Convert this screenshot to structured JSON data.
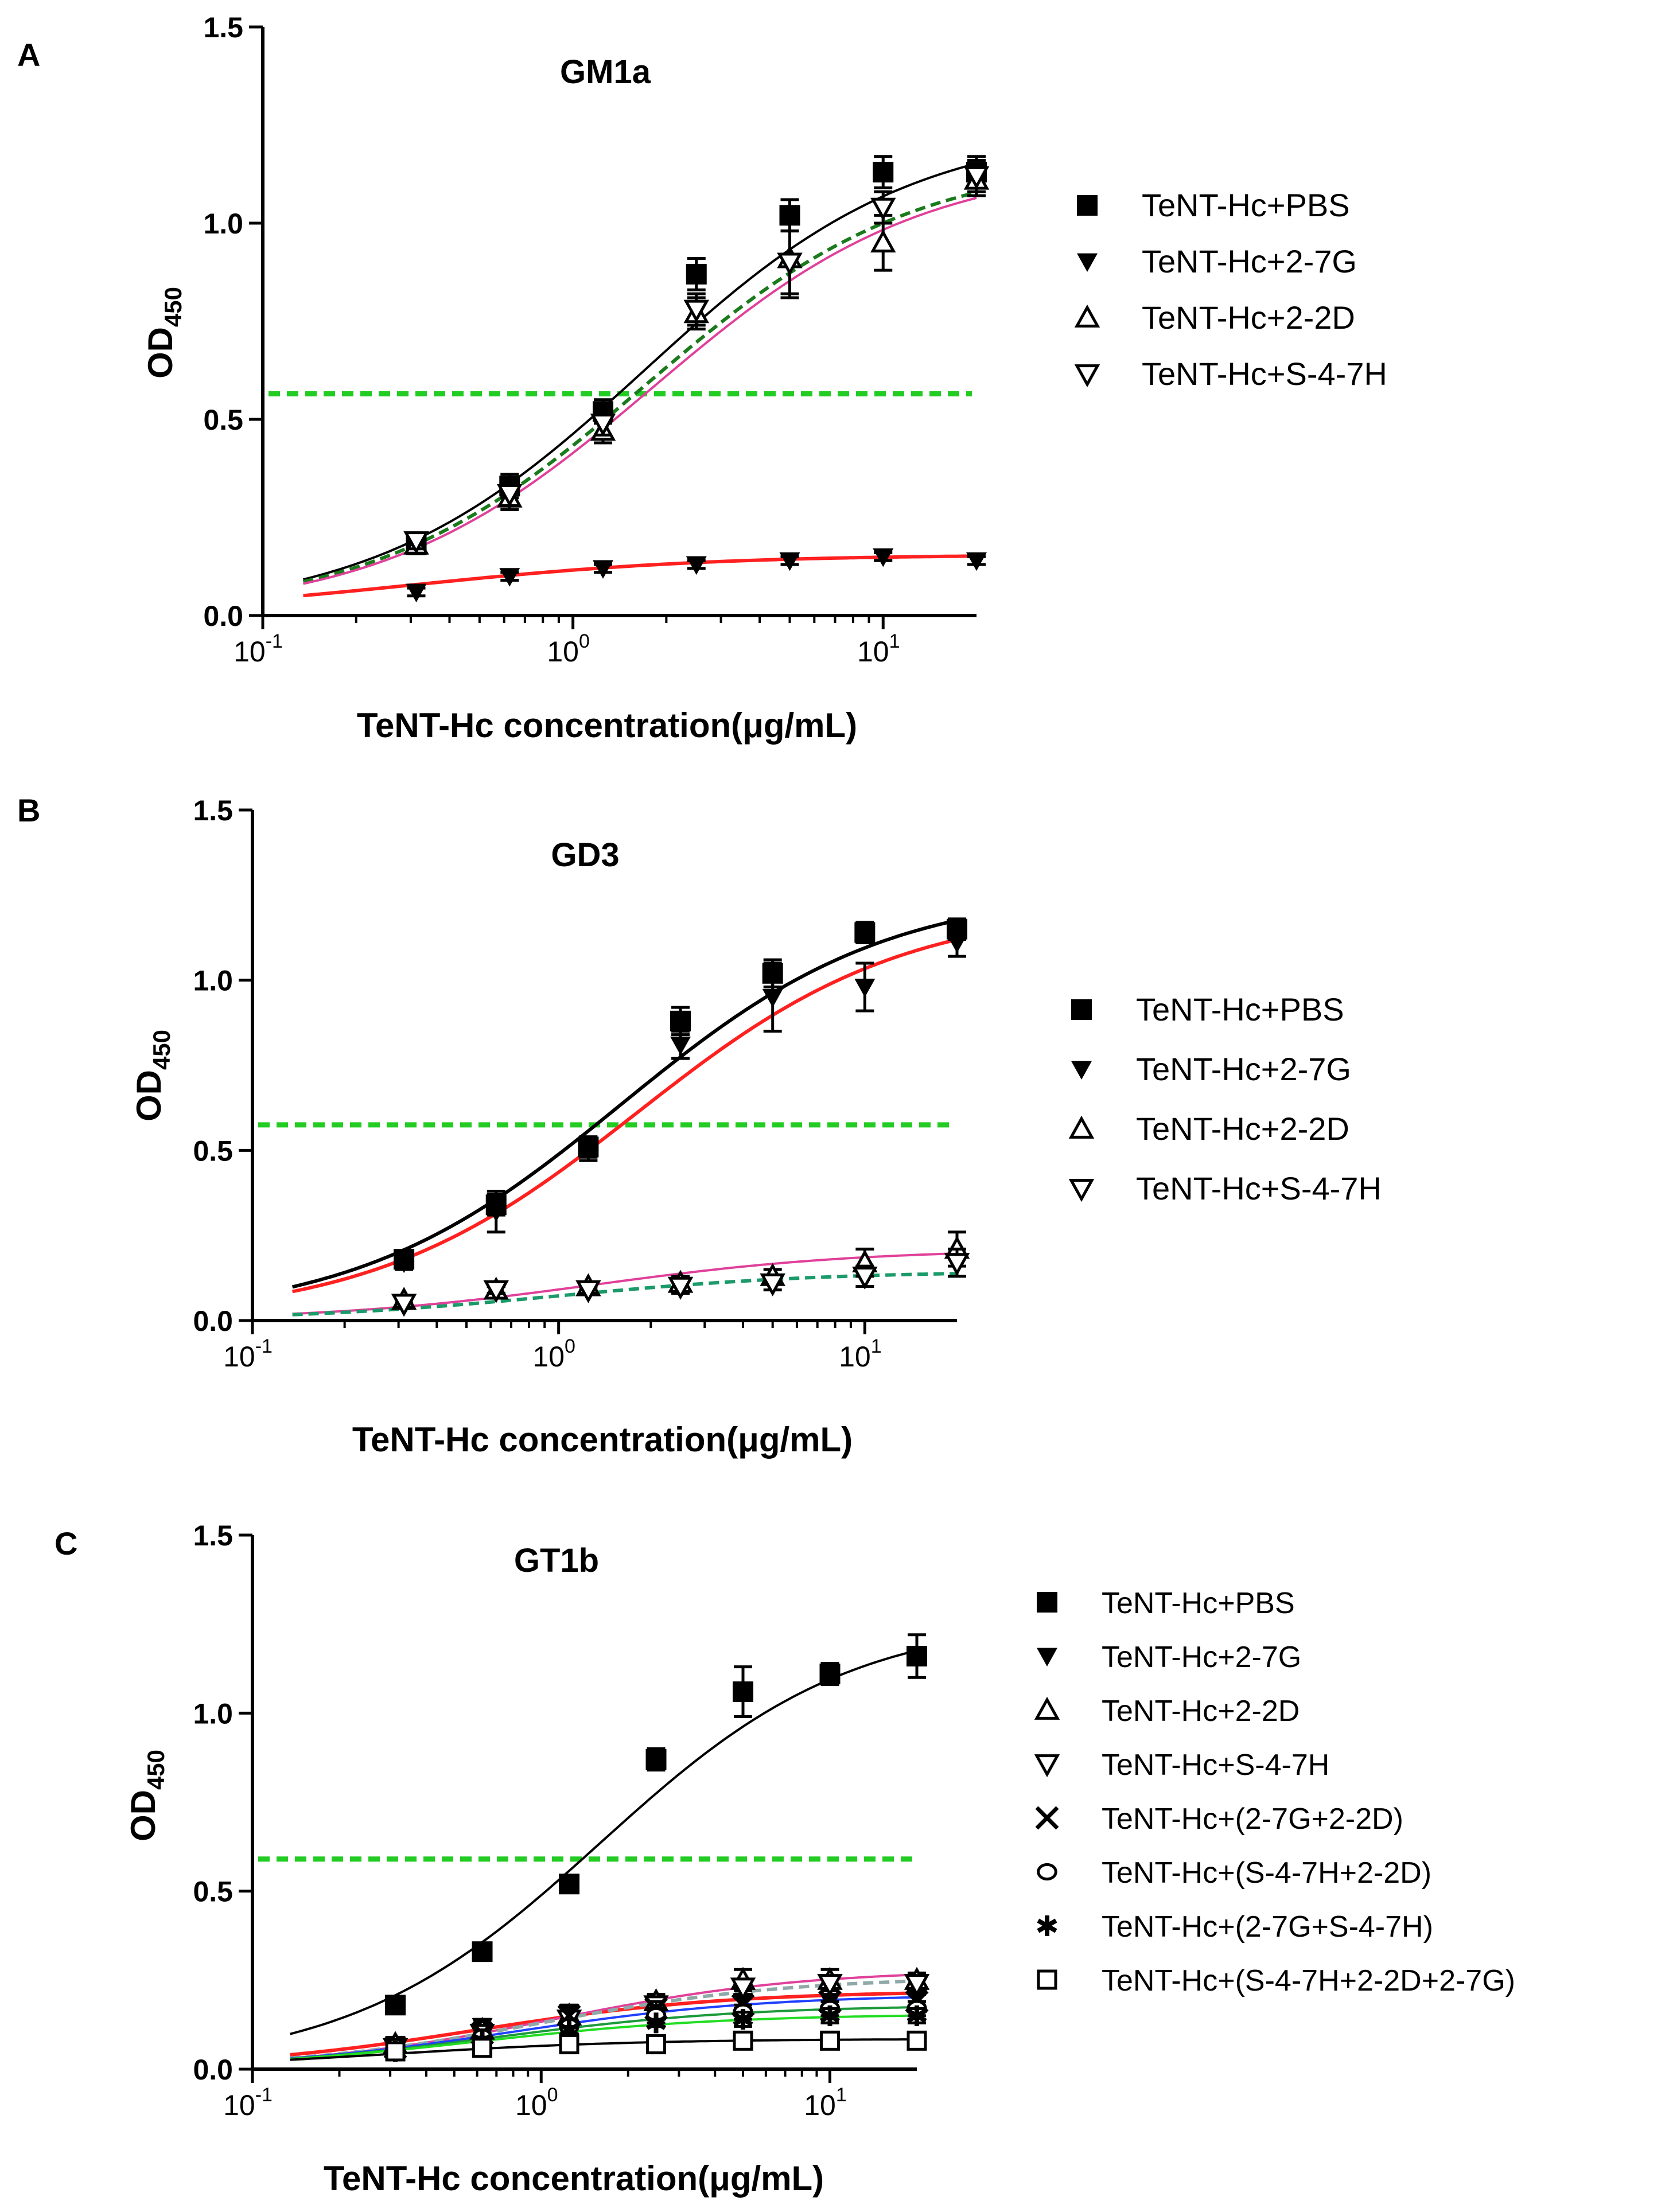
{
  "chart_data": [
    {
      "panel_label": "A",
      "type": "scatter",
      "title": "GM1a",
      "xlabel": "TeNT-Hc concentration(μg/mL)",
      "ylabel_base": "OD",
      "ylabel_sub": "450",
      "x_scale": "log10",
      "xlim": [
        0.1,
        20
      ],
      "ylim": [
        0,
        1.5
      ],
      "x_ticks": [
        {
          "value": 0.1,
          "base": "10",
          "exp": "-1"
        },
        {
          "value": 1,
          "base": "10",
          "exp": "0"
        },
        {
          "value": 10,
          "base": "10",
          "exp": "1"
        }
      ],
      "y_ticks": [
        {
          "value": 0,
          "label": "0.0"
        },
        {
          "value": 0.5,
          "label": "0.5"
        },
        {
          "value": 1.0,
          "label": "1.0"
        },
        {
          "value": 1.5,
          "label": "1.5"
        }
      ],
      "threshold": {
        "value": 0.565,
        "color": "#22cc22"
      },
      "legend_position": "right",
      "x": [
        0.3125,
        0.625,
        1.25,
        2.5,
        5,
        10,
        20
      ],
      "series": [
        {
          "name": "TeNT-Hc+PBS",
          "marker": "square",
          "color": "#000000",
          "values": [
            0.18,
            0.33,
            0.52,
            0.87,
            1.02,
            1.13,
            1.13
          ],
          "errors": [
            0.02,
            0.03,
            0.03,
            0.04,
            0.04,
            0.04,
            0.04
          ]
        },
        {
          "name": "TeNT-Hc+2-7G",
          "marker": "triangle-down-filled",
          "color": "#000000",
          "values": [
            0.06,
            0.1,
            0.12,
            0.13,
            0.14,
            0.15,
            0.14
          ],
          "errors": [
            0.01,
            0.01,
            0.01,
            0.01,
            0.01,
            0.01,
            0.01
          ]
        },
        {
          "name": "TeNT-Hc+2-2D",
          "marker": "triangle-up-open",
          "color": "#000000",
          "values": [
            0.18,
            0.3,
            0.47,
            0.77,
            0.91,
            0.95,
            1.11
          ],
          "errors": [
            0.02,
            0.03,
            0.03,
            0.04,
            0.1,
            0.07,
            0.04
          ]
        },
        {
          "name": "TeNT-Hc+S-4-7H",
          "marker": "triangle-down-open",
          "color": "#000000",
          "values": [
            0.19,
            0.31,
            0.49,
            0.78,
            0.9,
            1.04,
            1.12
          ],
          "errors": [
            0.02,
            0.03,
            0.03,
            0.04,
            0.08,
            0.04,
            0.04
          ]
        }
      ],
      "fits": [
        {
          "series": "TeNT-Hc+PBS",
          "color": "#000000",
          "dash": "solid",
          "bottom": 0.0,
          "top": 1.25,
          "ec50": 1.7,
          "hill": 1.0
        },
        {
          "series": "TeNT-Hc+2-7G",
          "color": "#ff2020",
          "dash": "solid",
          "bottom": 0.0,
          "top": 0.155,
          "ec50": 0.3,
          "hill": 0.9
        },
        {
          "series": "TeNT-Hc+2-2D",
          "color": "#1b7a1b",
          "dash": "dashed",
          "bottom": 0.0,
          "top": 1.17,
          "ec50": 1.7,
          "hill": 1.0
        },
        {
          "series": "TeNT-Hc+S-4-7H",
          "color": "#e0409a",
          "dash": "solid",
          "bottom": 0.0,
          "top": 1.16,
          "ec50": 1.8,
          "hill": 1.0
        }
      ]
    },
    {
      "panel_label": "B",
      "type": "scatter",
      "title": "GD3",
      "xlabel": "TeNT-Hc concentration(μg/mL)",
      "ylabel_base": "OD",
      "ylabel_sub": "450",
      "x_scale": "log10",
      "xlim": [
        0.1,
        20
      ],
      "ylim": [
        0,
        1.5
      ],
      "x_ticks": [
        {
          "value": 0.1,
          "base": "10",
          "exp": "-1"
        },
        {
          "value": 1,
          "base": "10",
          "exp": "0"
        },
        {
          "value": 10,
          "base": "10",
          "exp": "1"
        }
      ],
      "y_ticks": [
        {
          "value": 0,
          "label": "0.0"
        },
        {
          "value": 0.5,
          "label": "0.5"
        },
        {
          "value": 1.0,
          "label": "1.0"
        },
        {
          "value": 1.5,
          "label": "1.5"
        }
      ],
      "threshold": {
        "value": 0.575,
        "color": "#22cc22"
      },
      "legend_position": "right",
      "x": [
        0.3125,
        0.625,
        1.25,
        2.5,
        5,
        10,
        20
      ],
      "series": [
        {
          "name": "TeNT-Hc+PBS",
          "marker": "square",
          "color": "#000000",
          "values": [
            0.18,
            0.34,
            0.51,
            0.88,
            1.02,
            1.14,
            1.15
          ],
          "errors": [
            0.02,
            0.03,
            0.03,
            0.04,
            0.04,
            0.03,
            0.03
          ]
        },
        {
          "name": "TeNT-Hc+2-7G",
          "marker": "triangle-down-filled",
          "color": "#000000",
          "values": [
            0.17,
            0.32,
            0.5,
            0.81,
            0.95,
            0.98,
            1.11
          ],
          "errors": [
            0.02,
            0.06,
            0.03,
            0.04,
            0.1,
            0.07,
            0.04
          ]
        },
        {
          "name": "TeNT-Hc+2-2D",
          "marker": "triangle-up-open",
          "color": "#000000",
          "values": [
            0.06,
            0.09,
            0.1,
            0.11,
            0.13,
            0.17,
            0.21
          ],
          "errors": [
            0.01,
            0.01,
            0.01,
            0.02,
            0.02,
            0.04,
            0.05
          ]
        },
        {
          "name": "TeNT-Hc+S-4-7H",
          "marker": "triangle-down-open",
          "color": "#000000",
          "values": [
            0.05,
            0.09,
            0.09,
            0.1,
            0.11,
            0.13,
            0.17
          ],
          "errors": [
            0.01,
            0.01,
            0.01,
            0.02,
            0.02,
            0.03,
            0.04
          ]
        }
      ],
      "fits": [
        {
          "series": "TeNT-Hc+PBS",
          "color": "#000000",
          "dash": "solid",
          "bottom": 0.0,
          "top": 1.27,
          "ec50": 1.6,
          "hill": 1.0
        },
        {
          "series": "TeNT-Hc+2-7G",
          "color": "#ff2020",
          "dash": "solid",
          "bottom": 0.0,
          "top": 1.22,
          "ec50": 1.8,
          "hill": 1.0
        },
        {
          "series": "TeNT-Hc+2-2D",
          "color": "#e0409a",
          "dash": "solid",
          "bottom": 0.0,
          "top": 0.21,
          "ec50": 1.3,
          "hill": 1.0
        },
        {
          "series": "TeNT-Hc+S-4-7H",
          "color": "#1b9a6a",
          "dash": "dashed",
          "bottom": 0.0,
          "top": 0.145,
          "ec50": 1.0,
          "hill": 1.0
        }
      ]
    },
    {
      "panel_label": "C",
      "type": "scatter",
      "title": "GT1b",
      "xlabel": "TeNT-Hc concentration(μg/mL)",
      "ylabel_base": "OD",
      "ylabel_sub": "450",
      "x_scale": "log10",
      "xlim": [
        0.1,
        20
      ],
      "ylim": [
        0,
        1.5
      ],
      "x_ticks": [
        {
          "value": 0.1,
          "base": "10",
          "exp": "-1"
        },
        {
          "value": 1,
          "base": "10",
          "exp": "0"
        },
        {
          "value": 10,
          "base": "10",
          "exp": "1"
        }
      ],
      "y_ticks": [
        {
          "value": 0,
          "label": "0.0"
        },
        {
          "value": 0.5,
          "label": "0.5"
        },
        {
          "value": 1.0,
          "label": "1.0"
        },
        {
          "value": 1.5,
          "label": "1.5"
        }
      ],
      "threshold": {
        "value": 0.59,
        "color": "#22cc22"
      },
      "legend_position": "right",
      "x": [
        0.3125,
        0.625,
        1.25,
        2.5,
        5,
        10,
        20
      ],
      "series": [
        {
          "name": "TeNT-Hc+PBS",
          "marker": "square",
          "color": "#000000",
          "values": [
            0.18,
            0.33,
            0.52,
            0.87,
            1.06,
            1.11,
            1.16
          ],
          "errors": [
            0.02,
            0.02,
            0.02,
            0.03,
            0.07,
            0.03,
            0.06
          ]
        },
        {
          "name": "TeNT-Hc+2-7G",
          "marker": "triangle-down-filled",
          "color": "#000000",
          "values": [
            0.07,
            0.12,
            0.16,
            0.18,
            0.19,
            0.19,
            0.2
          ],
          "errors": [
            0.01,
            0.02,
            0.02,
            0.02,
            0.02,
            0.02,
            0.02
          ]
        },
        {
          "name": "TeNT-Hc+2-2D",
          "marker": "triangle-up-open",
          "color": "#000000",
          "values": [
            0.07,
            0.11,
            0.15,
            0.19,
            0.25,
            0.25,
            0.25
          ],
          "errors": [
            0.01,
            0.02,
            0.02,
            0.02,
            0.03,
            0.03,
            0.02
          ]
        },
        {
          "name": "TeNT-Hc+S-4-7H",
          "marker": "triangle-down-open",
          "color": "#000000",
          "values": [
            0.06,
            0.1,
            0.14,
            0.18,
            0.23,
            0.24,
            0.24
          ],
          "errors": [
            0.01,
            0.02,
            0.02,
            0.02,
            0.02,
            0.02,
            0.02
          ]
        },
        {
          "name": "TeNT-Hc+(2-7G+2-2D)",
          "marker": "x",
          "color": "#000000",
          "values": [
            0.06,
            0.1,
            0.15,
            0.17,
            0.18,
            0.19,
            0.19
          ],
          "errors": [
            0.01,
            0.01,
            0.02,
            0.02,
            0.02,
            0.02,
            0.02
          ]
        },
        {
          "name": "TeNT-Hc+(S-4-7H+2-2D)",
          "marker": "circle-open",
          "color": "#000000",
          "values": [
            0.05,
            0.09,
            0.12,
            0.15,
            0.16,
            0.17,
            0.17
          ],
          "errors": [
            0.01,
            0.01,
            0.01,
            0.02,
            0.02,
            0.02,
            0.02
          ]
        },
        {
          "name": "TeNT-Hc+(2-7G+S-4-7H)",
          "marker": "star",
          "color": "#000000",
          "values": [
            0.05,
            0.08,
            0.11,
            0.13,
            0.14,
            0.15,
            0.15
          ],
          "errors": [
            0.01,
            0.01,
            0.01,
            0.01,
            0.02,
            0.02,
            0.02
          ]
        },
        {
          "name": "TeNT-Hc+(S-4-7H+2-2D+2-7G)",
          "marker": "square-open",
          "color": "#000000",
          "values": [
            0.05,
            0.06,
            0.07,
            0.07,
            0.08,
            0.08,
            0.08
          ],
          "errors": [
            0.01,
            0.01,
            0.01,
            0.01,
            0.01,
            0.01,
            0.01
          ]
        }
      ],
      "fits": [
        {
          "series": "TeNT-Hc+PBS",
          "color": "#000000",
          "dash": "solid",
          "bottom": 0.0,
          "top": 1.27,
          "ec50": 1.6,
          "hill": 1.0
        },
        {
          "series": "TeNT-Hc+2-7G",
          "color": "#ff2020",
          "dash": "solid",
          "bottom": 0.0,
          "top": 0.22,
          "ec50": 0.6,
          "hill": 1.0
        },
        {
          "series": "TeNT-Hc+2-2D",
          "color": "#e0409a",
          "dash": "solid",
          "bottom": 0.0,
          "top": 0.28,
          "ec50": 1.1,
          "hill": 1.0
        },
        {
          "series": "TeNT-Hc+S-4-7H",
          "color": "#8fa8a8",
          "dash": "dashed",
          "bottom": 0.0,
          "top": 0.26,
          "ec50": 1.0,
          "hill": 1.0
        },
        {
          "series": "TeNT-Hc+(2-7G+2-2D)",
          "color": "#2040ff",
          "dash": "solid",
          "bottom": 0.0,
          "top": 0.21,
          "ec50": 0.8,
          "hill": 1.0
        },
        {
          "series": "TeNT-Hc+(S-4-7H+2-2D)",
          "color": "#1b9a3a",
          "dash": "solid",
          "bottom": 0.0,
          "top": 0.18,
          "ec50": 0.7,
          "hill": 1.0
        },
        {
          "series": "TeNT-Hc+(2-7G+S-4-7H)",
          "color": "#22dd22",
          "dash": "solid",
          "bottom": 0.0,
          "top": 0.155,
          "ec50": 0.6,
          "hill": 1.0
        },
        {
          "series": "TeNT-Hc+(S-4-7H+2-2D+2-7G)",
          "color": "#000000",
          "dash": "solid",
          "bottom": 0.0,
          "top": 0.085,
          "ec50": 0.3,
          "hill": 1.0
        }
      ]
    }
  ]
}
